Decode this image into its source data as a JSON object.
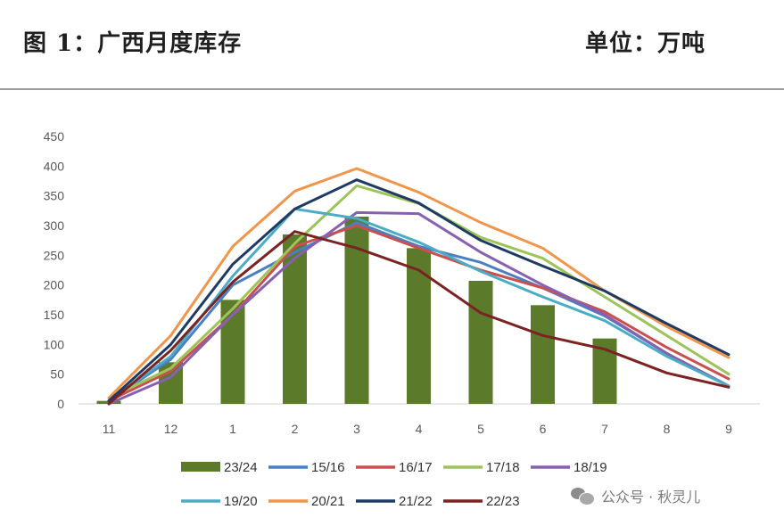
{
  "header": {
    "title": "图 1：广西月度库存",
    "unit": "单位：万吨"
  },
  "watermark": {
    "icon": "wechat-icon",
    "text": "公众号 · 秋灵儿"
  },
  "chart_data": {
    "type": "bar+line",
    "categories": [
      "11",
      "12",
      "1",
      "2",
      "3",
      "4",
      "5",
      "6",
      "7",
      "8",
      "9"
    ],
    "ylim": [
      0,
      450
    ],
    "yticks": [
      0,
      50,
      100,
      150,
      200,
      250,
      300,
      350,
      400,
      450
    ],
    "grid": false,
    "legend_position": "bottom",
    "bar_series": {
      "name": "23/24",
      "color": "#5b7a2a",
      "values": [
        5,
        70,
        175,
        285,
        315,
        262,
        207,
        166,
        110,
        null,
        null
      ]
    },
    "series": [
      {
        "name": "15/16",
        "color": "#4a7fc4",
        "values": [
          5,
          75,
          200,
          255,
          305,
          265,
          238,
          195,
          148,
          85,
          30
        ]
      },
      {
        "name": "16/17",
        "color": "#c9504e",
        "values": [
          5,
          55,
          150,
          265,
          300,
          262,
          225,
          195,
          155,
          95,
          42
        ]
      },
      {
        "name": "17/18",
        "color": "#9cc45a",
        "values": [
          10,
          60,
          160,
          270,
          367,
          337,
          280,
          245,
          180,
          115,
          50
        ]
      },
      {
        "name": "18/19",
        "color": "#8761b0",
        "values": [
          0,
          45,
          150,
          245,
          322,
          320,
          255,
          200,
          150,
          85,
          30
        ]
      },
      {
        "name": "19/20",
        "color": "#4bacc6",
        "values": [
          5,
          80,
          215,
          328,
          312,
          272,
          223,
          180,
          140,
          80,
          30
        ]
      },
      {
        "name": "20/21",
        "color": "#f0964a",
        "values": [
          10,
          115,
          265,
          358,
          396,
          356,
          305,
          262,
          190,
          130,
          78
        ]
      },
      {
        "name": "21/22",
        "color": "#1f3b63",
        "values": [
          5,
          100,
          235,
          328,
          377,
          338,
          275,
          232,
          190,
          135,
          83
        ]
      },
      {
        "name": "22/23",
        "color": "#7b2323",
        "values": [
          0,
          90,
          205,
          290,
          262,
          225,
          153,
          115,
          92,
          52,
          28
        ]
      }
    ]
  }
}
